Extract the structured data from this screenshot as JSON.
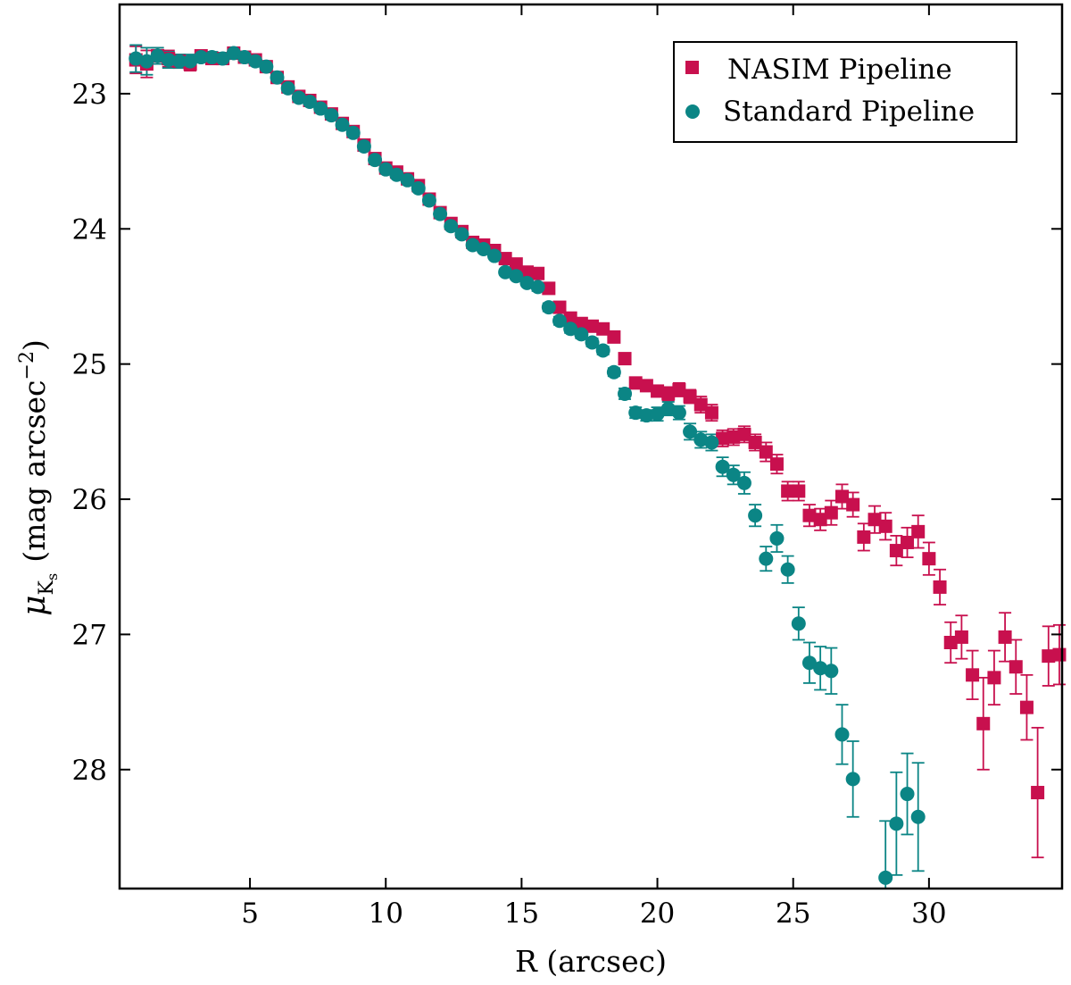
{
  "chart_data": {
    "type": "scatter",
    "title": "",
    "xlabel": "R (arcsec)",
    "ylabel": {
      "symbol": "μ",
      "subscript_main": "K",
      "subscript_sub": "s",
      "units_open": "(mag arcsec",
      "units_exp": "−2",
      "units_close": ")"
    },
    "xlim": [
      0.2,
      34.9
    ],
    "ylim": [
      28.88,
      22.34
    ],
    "y_inverted": true,
    "xticks": [
      5,
      10,
      15,
      20,
      25,
      30
    ],
    "yticks": [
      23,
      24,
      25,
      26,
      27,
      28
    ],
    "legend_position": "top-right",
    "series": [
      {
        "name": "NASIM Pipeline",
        "marker": "square",
        "color": "#c8104e",
        "x": [
          0.8,
          1.2,
          1.6,
          2.0,
          2.4,
          2.8,
          3.2,
          3.6,
          4.0,
          4.4,
          4.8,
          5.2,
          5.6,
          6.0,
          6.4,
          6.8,
          7.2,
          7.6,
          8.0,
          8.4,
          8.8,
          9.2,
          9.6,
          10.0,
          10.4,
          10.8,
          11.2,
          11.6,
          12.0,
          12.4,
          12.8,
          13.2,
          13.6,
          14.0,
          14.4,
          14.8,
          15.2,
          15.6,
          16.0,
          16.4,
          16.8,
          17.2,
          17.6,
          18.0,
          18.4,
          18.8,
          19.2,
          19.6,
          20.0,
          20.4,
          20.8,
          21.2,
          21.6,
          22.0,
          22.4,
          22.8,
          23.2,
          23.6,
          24.0,
          24.4,
          24.8,
          25.2,
          25.6,
          26.0,
          26.4,
          26.8,
          27.2,
          27.6,
          28.0,
          28.4,
          28.8,
          29.2,
          29.6,
          30.0,
          30.4,
          30.8,
          31.2,
          31.6,
          32.0,
          32.4,
          32.8,
          33.2,
          33.6,
          34.0,
          34.4,
          34.8
        ],
        "y": [
          22.75,
          22.78,
          22.72,
          22.74,
          22.76,
          22.78,
          22.72,
          22.74,
          22.74,
          22.7,
          22.73,
          22.75,
          22.8,
          22.88,
          22.95,
          23.02,
          23.05,
          23.1,
          23.15,
          23.22,
          23.28,
          23.38,
          23.48,
          23.55,
          23.58,
          23.63,
          23.68,
          23.78,
          23.88,
          23.96,
          24.02,
          24.1,
          24.12,
          24.16,
          24.22,
          24.26,
          24.32,
          24.33,
          24.44,
          24.58,
          24.66,
          24.7,
          24.72,
          24.74,
          24.8,
          24.96,
          25.14,
          25.16,
          25.2,
          25.22,
          25.19,
          25.24,
          25.3,
          25.36,
          25.55,
          25.54,
          25.52,
          25.58,
          25.65,
          25.74,
          25.94,
          25.94,
          26.12,
          26.15,
          26.1,
          25.98,
          26.04,
          26.28,
          26.15,
          26.2,
          26.38,
          26.32,
          26.24,
          26.44,
          26.65,
          27.06,
          27.02,
          27.3,
          27.66,
          27.32,
          27.02,
          27.24,
          27.54,
          28.17,
          27.16,
          27.15
        ],
        "err": [
          0.1,
          0.1,
          0.06,
          0.06,
          0.05,
          0.05,
          0.04,
          0.04,
          0.04,
          0.03,
          0.03,
          0.03,
          0.02,
          0.02,
          0.02,
          0.02,
          0.02,
          0.02,
          0.02,
          0.02,
          0.02,
          0.02,
          0.02,
          0.02,
          0.02,
          0.02,
          0.02,
          0.02,
          0.02,
          0.02,
          0.02,
          0.02,
          0.02,
          0.02,
          0.02,
          0.02,
          0.02,
          0.02,
          0.02,
          0.03,
          0.03,
          0.03,
          0.03,
          0.03,
          0.03,
          0.03,
          0.04,
          0.04,
          0.04,
          0.05,
          0.05,
          0.05,
          0.06,
          0.06,
          0.06,
          0.06,
          0.06,
          0.06,
          0.07,
          0.07,
          0.07,
          0.07,
          0.08,
          0.08,
          0.09,
          0.09,
          0.09,
          0.1,
          0.1,
          0.1,
          0.11,
          0.11,
          0.12,
          0.12,
          0.13,
          0.15,
          0.16,
          0.18,
          0.34,
          0.2,
          0.18,
          0.2,
          0.24,
          0.48,
          0.22,
          0.22
        ]
      },
      {
        "name": "Standard Pipeline",
        "marker": "circle",
        "color": "#0b8585",
        "x": [
          0.8,
          1.2,
          1.6,
          2.0,
          2.4,
          2.8,
          3.2,
          3.6,
          4.0,
          4.4,
          4.8,
          5.2,
          5.6,
          6.0,
          6.4,
          6.8,
          7.2,
          7.6,
          8.0,
          8.4,
          8.8,
          9.2,
          9.6,
          10.0,
          10.4,
          10.8,
          11.2,
          11.6,
          12.0,
          12.4,
          12.8,
          13.2,
          13.6,
          14.0,
          14.4,
          14.8,
          15.2,
          15.6,
          16.0,
          16.4,
          16.8,
          17.2,
          17.6,
          18.0,
          18.4,
          18.8,
          19.2,
          19.6,
          20.0,
          20.4,
          20.8,
          21.2,
          21.6,
          22.0,
          22.4,
          22.8,
          23.2,
          23.6,
          24.0,
          24.4,
          24.8,
          25.2,
          25.6,
          26.0,
          26.4,
          26.8,
          27.2,
          28.4,
          28.8,
          29.2,
          29.6
        ],
        "y": [
          22.74,
          22.76,
          22.72,
          22.75,
          22.76,
          22.76,
          22.73,
          22.73,
          22.74,
          22.7,
          22.73,
          22.76,
          22.8,
          22.88,
          22.96,
          23.03,
          23.06,
          23.11,
          23.16,
          23.23,
          23.29,
          23.39,
          23.49,
          23.56,
          23.6,
          23.64,
          23.7,
          23.79,
          23.89,
          23.98,
          24.04,
          24.12,
          24.15,
          24.2,
          24.32,
          24.35,
          24.4,
          24.43,
          24.58,
          24.68,
          24.74,
          24.78,
          24.84,
          24.9,
          25.06,
          25.22,
          25.36,
          25.38,
          25.37,
          25.33,
          25.36,
          25.5,
          25.56,
          25.58,
          25.76,
          25.82,
          25.88,
          26.12,
          26.44,
          26.29,
          26.52,
          26.92,
          27.21,
          27.25,
          27.27,
          27.74,
          28.07,
          28.8,
          28.4,
          28.18,
          28.35
        ],
        "err": [
          0.1,
          0.1,
          0.06,
          0.06,
          0.05,
          0.05,
          0.04,
          0.04,
          0.04,
          0.03,
          0.03,
          0.03,
          0.02,
          0.02,
          0.02,
          0.02,
          0.02,
          0.02,
          0.02,
          0.02,
          0.02,
          0.02,
          0.02,
          0.02,
          0.02,
          0.02,
          0.02,
          0.02,
          0.02,
          0.02,
          0.02,
          0.02,
          0.02,
          0.02,
          0.02,
          0.02,
          0.02,
          0.03,
          0.03,
          0.03,
          0.03,
          0.03,
          0.03,
          0.03,
          0.03,
          0.04,
          0.04,
          0.04,
          0.05,
          0.05,
          0.05,
          0.06,
          0.06,
          0.06,
          0.07,
          0.07,
          0.08,
          0.08,
          0.09,
          0.1,
          0.1,
          0.12,
          0.15,
          0.16,
          0.17,
          0.22,
          0.28,
          0.42,
          0.38,
          0.3,
          0.4
        ]
      }
    ]
  }
}
